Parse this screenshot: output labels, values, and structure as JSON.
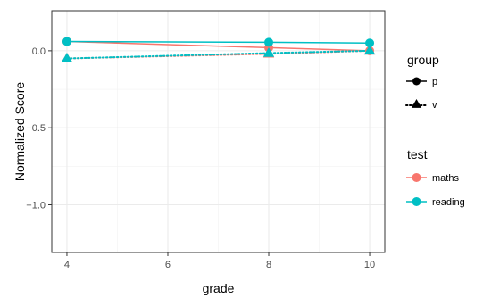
{
  "chart_data": {
    "type": "line",
    "xlabel": "grade",
    "ylabel": "Normalized Score",
    "x": [
      4,
      8,
      10
    ],
    "xlim": [
      3.7,
      10.3
    ],
    "ylim": [
      -1.31,
      0.26
    ],
    "x_ticks": [
      4,
      6,
      8,
      10
    ],
    "y_ticks": [
      0.0,
      -0.5,
      -1.0
    ],
    "x_tick_labels": [
      "4",
      "6",
      "8",
      "10"
    ],
    "y_tick_labels": [
      "0.0",
      "−0.5",
      "−1.0"
    ],
    "grid": true,
    "legend_position": "right",
    "series": [
      {
        "test": "maths",
        "group": "p",
        "values": [
          0.06,
          0.02,
          0.0
        ],
        "color": "#F8766D",
        "linetype": "solid",
        "marker": "circle"
      },
      {
        "test": "reading",
        "group": "p",
        "values": [
          0.06,
          0.055,
          0.05
        ],
        "color": "#00BFC4",
        "linetype": "solid",
        "marker": "circle"
      },
      {
        "test": "maths",
        "group": "v",
        "values": [
          -0.05,
          -0.02,
          0.0
        ],
        "color": "#F8766D",
        "linetype": "dotted",
        "marker": "triangle"
      },
      {
        "test": "reading",
        "group": "v",
        "values": [
          -0.05,
          -0.015,
          0.0
        ],
        "color": "#00BFC4",
        "linetype": "dotted",
        "marker": "triangle"
      }
    ],
    "legends": [
      {
        "title": "group",
        "entries": [
          {
            "label": "p",
            "marker": "circle",
            "linetype": "solid"
          },
          {
            "label": "v",
            "marker": "triangle",
            "linetype": "dotted"
          }
        ]
      },
      {
        "title": "test",
        "entries": [
          {
            "label": "maths",
            "color": "#F8766D"
          },
          {
            "label": "reading",
            "color": "#00BFC4"
          }
        ]
      }
    ]
  }
}
